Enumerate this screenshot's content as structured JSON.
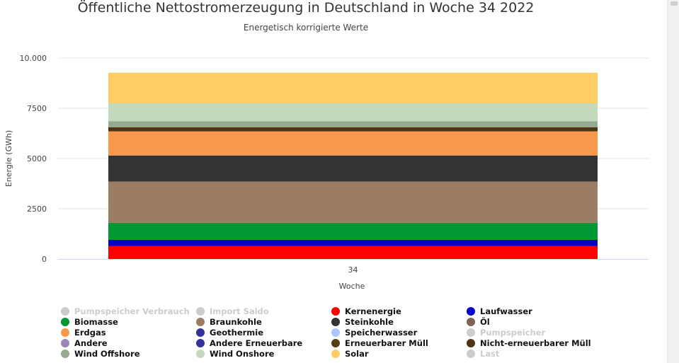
{
  "chart_data": {
    "type": "bar",
    "stacked": true,
    "title": "Öffentliche Nettostromerzeugung in Deutschland in Woche 34 2022",
    "subtitle": "Energetisch korrigierte Werte",
    "xlabel": "Woche",
    "ylabel": "Energie (GWh)",
    "categories": [
      "34"
    ],
    "ylim": [
      0,
      10000
    ],
    "yticks": [
      0,
      2500,
      5000,
      7500,
      10000
    ],
    "ytick_labels": [
      "0",
      "2500",
      "5000",
      "7500",
      "10.000"
    ],
    "grid": true,
    "legend_position": "bottom",
    "series": [
      {
        "name": "Pumpspeicher Verbrauch",
        "values": [
          0
        ],
        "color": "#cccccc",
        "visible": false
      },
      {
        "name": "Import Saldo",
        "values": [
          0
        ],
        "color": "#cccccc",
        "visible": false
      },
      {
        "name": "Kernenergie",
        "values": [
          650
        ],
        "color": "#ff0000",
        "visible": true
      },
      {
        "name": "Laufwasser",
        "values": [
          300
        ],
        "color": "#0000cc",
        "visible": true
      },
      {
        "name": "Biomasse",
        "values": [
          850
        ],
        "color": "#009933",
        "visible": true
      },
      {
        "name": "Braunkohle",
        "values": [
          2050
        ],
        "color": "#9a7d62",
        "visible": true
      },
      {
        "name": "Steinkohle",
        "values": [
          1300
        ],
        "color": "#333333",
        "visible": true
      },
      {
        "name": "Öl",
        "values": [
          0
        ],
        "color": "#7d6350",
        "visible": true
      },
      {
        "name": "Erdgas",
        "values": [
          1200
        ],
        "color": "#f9974a",
        "visible": true
      },
      {
        "name": "Geothermie",
        "values": [
          0
        ],
        "color": "#333399",
        "visible": true
      },
      {
        "name": "Speicherwasser",
        "values": [
          0
        ],
        "color": "#aac8ff",
        "visible": true
      },
      {
        "name": "Pumpspeicher",
        "values": [
          0
        ],
        "color": "#cccccc",
        "visible": false
      },
      {
        "name": "Andere",
        "values": [
          0
        ],
        "color": "#9b86b8",
        "visible": true
      },
      {
        "name": "Andere Erneuerbare",
        "values": [
          0
        ],
        "color": "#333399",
        "visible": true
      },
      {
        "name": "Erneuerbarer Müll",
        "values": [
          0
        ],
        "color": "#5a3c14",
        "visible": true
      },
      {
        "name": "Nicht-erneuerbarer Müll",
        "values": [
          200
        ],
        "color": "#4e3412",
        "visible": true
      },
      {
        "name": "Last",
        "values": [
          0
        ],
        "color": "#cccccc",
        "visible": false
      },
      {
        "name": "Wind Offshore",
        "values": [
          300
        ],
        "color": "#95aa8f",
        "visible": true
      },
      {
        "name": "Wind Onshore",
        "values": [
          900
        ],
        "color": "#c4d8bc",
        "visible": true
      },
      {
        "name": "Solar",
        "values": [
          1520
        ],
        "color": "#ffcc66",
        "visible": true
      }
    ],
    "stack_order": [
      "Kernenergie",
      "Laufwasser",
      "Biomasse",
      "Braunkohle",
      "Steinkohle",
      "Öl",
      "Erdgas",
      "Geothermie",
      "Speicherwasser",
      "Andere",
      "Andere Erneuerbare",
      "Erneuerbarer Müll",
      "Nicht-erneuerbarer Müll",
      "Wind Offshore",
      "Wind Onshore",
      "Solar"
    ],
    "legend_order": [
      "Pumpspeicher Verbrauch",
      "Import Saldo",
      "Kernenergie",
      "Laufwasser",
      "Biomasse",
      "Braunkohle",
      "Steinkohle",
      "Öl",
      "Erdgas",
      "Geothermie",
      "Speicherwasser",
      "Pumpspeicher",
      "Andere",
      "Andere Erneuerbare",
      "Erneuerbarer Müll",
      "Nicht-erneuerbarer Müll",
      "Wind Offshore",
      "Wind Onshore",
      "Solar",
      "Last"
    ]
  }
}
